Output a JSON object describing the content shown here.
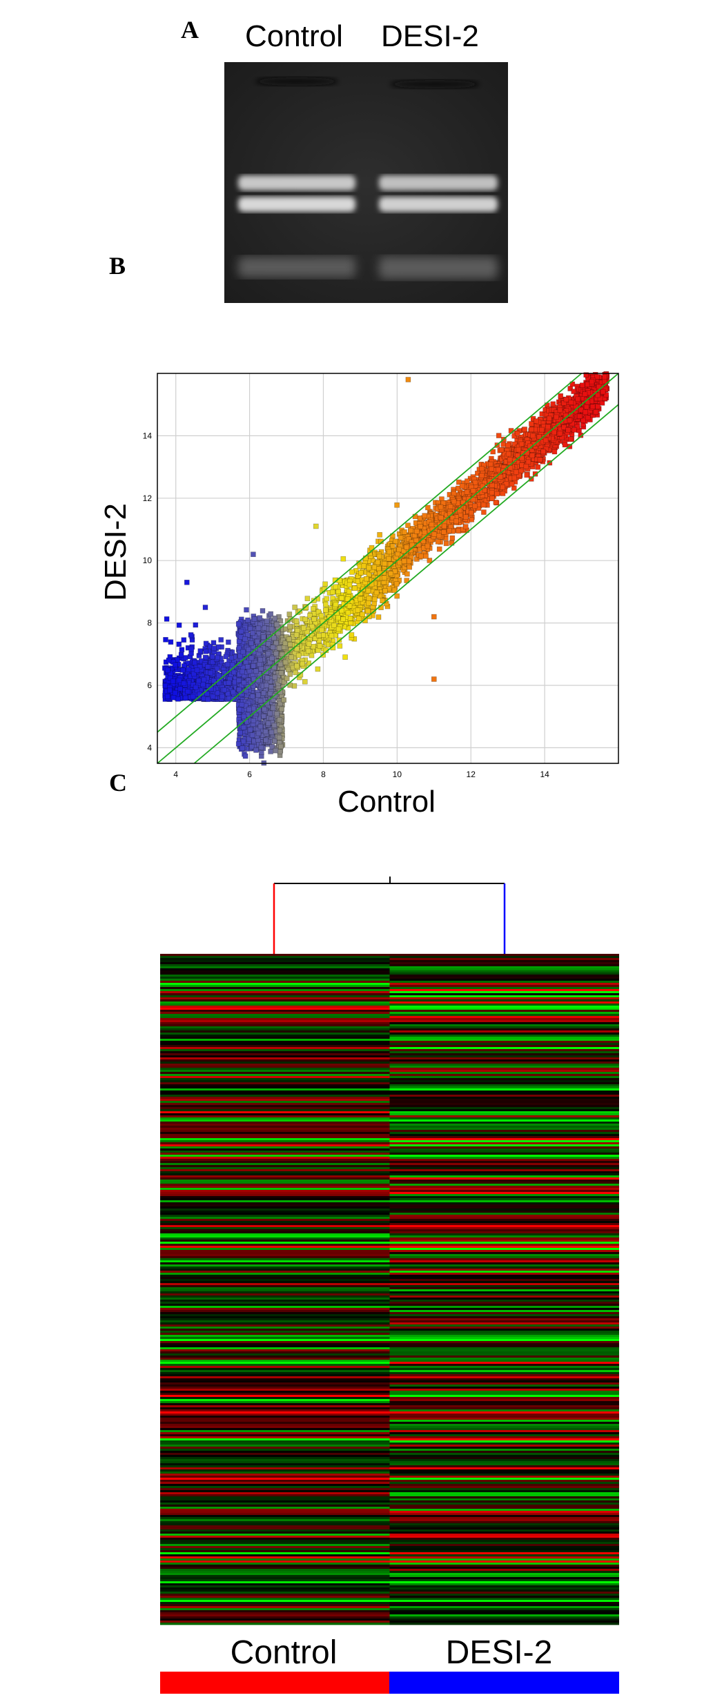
{
  "panels": {
    "a": "A",
    "b": "B",
    "c": "C"
  },
  "gel": {
    "lanes": [
      "Control",
      "DESI-2"
    ]
  },
  "chart_data": [
    {
      "type": "scatter",
      "xlabel": "Control",
      "ylabel": "DESI-2",
      "xlim": [
        3.5,
        16.0
      ],
      "ylim": [
        3.5,
        16.0
      ],
      "xticks": [
        4,
        6,
        8,
        10,
        12,
        14
      ],
      "yticks": [
        4,
        6,
        8,
        10,
        12,
        14
      ],
      "grid": true,
      "guide_lines": [
        {
          "name": "y = x",
          "offset": 0
        },
        {
          "name": "2-fold up",
          "offset": 1
        },
        {
          "name": "2-fold down",
          "offset": -1
        }
      ],
      "outliers": [
        {
          "x": 10.3,
          "y": 15.8
        },
        {
          "x": 11.0,
          "y": 8.2
        },
        {
          "x": 11.0,
          "y": 6.2
        },
        {
          "x": 6.1,
          "y": 10.2
        },
        {
          "x": 7.8,
          "y": 11.1
        },
        {
          "x": 4.3,
          "y": 9.3
        },
        {
          "x": 4.8,
          "y": 8.5
        }
      ],
      "colors": {
        "low": "#1010e0",
        "mid_low": "#6a6aa0",
        "mid": "#f0e010",
        "mid_high": "#f08010",
        "high": "#e81010",
        "guide": "#22aa22"
      }
    },
    {
      "type": "heatmap",
      "columns": [
        "Control",
        "DESI-2"
      ],
      "column_colors": [
        "#ff0000",
        "#0000ff"
      ],
      "dendrogram_colors": [
        "#ff0000",
        "#0000ff"
      ],
      "palette": {
        "low": "#00ff00",
        "zero": "#000000",
        "high": "#ff0000"
      }
    }
  ]
}
